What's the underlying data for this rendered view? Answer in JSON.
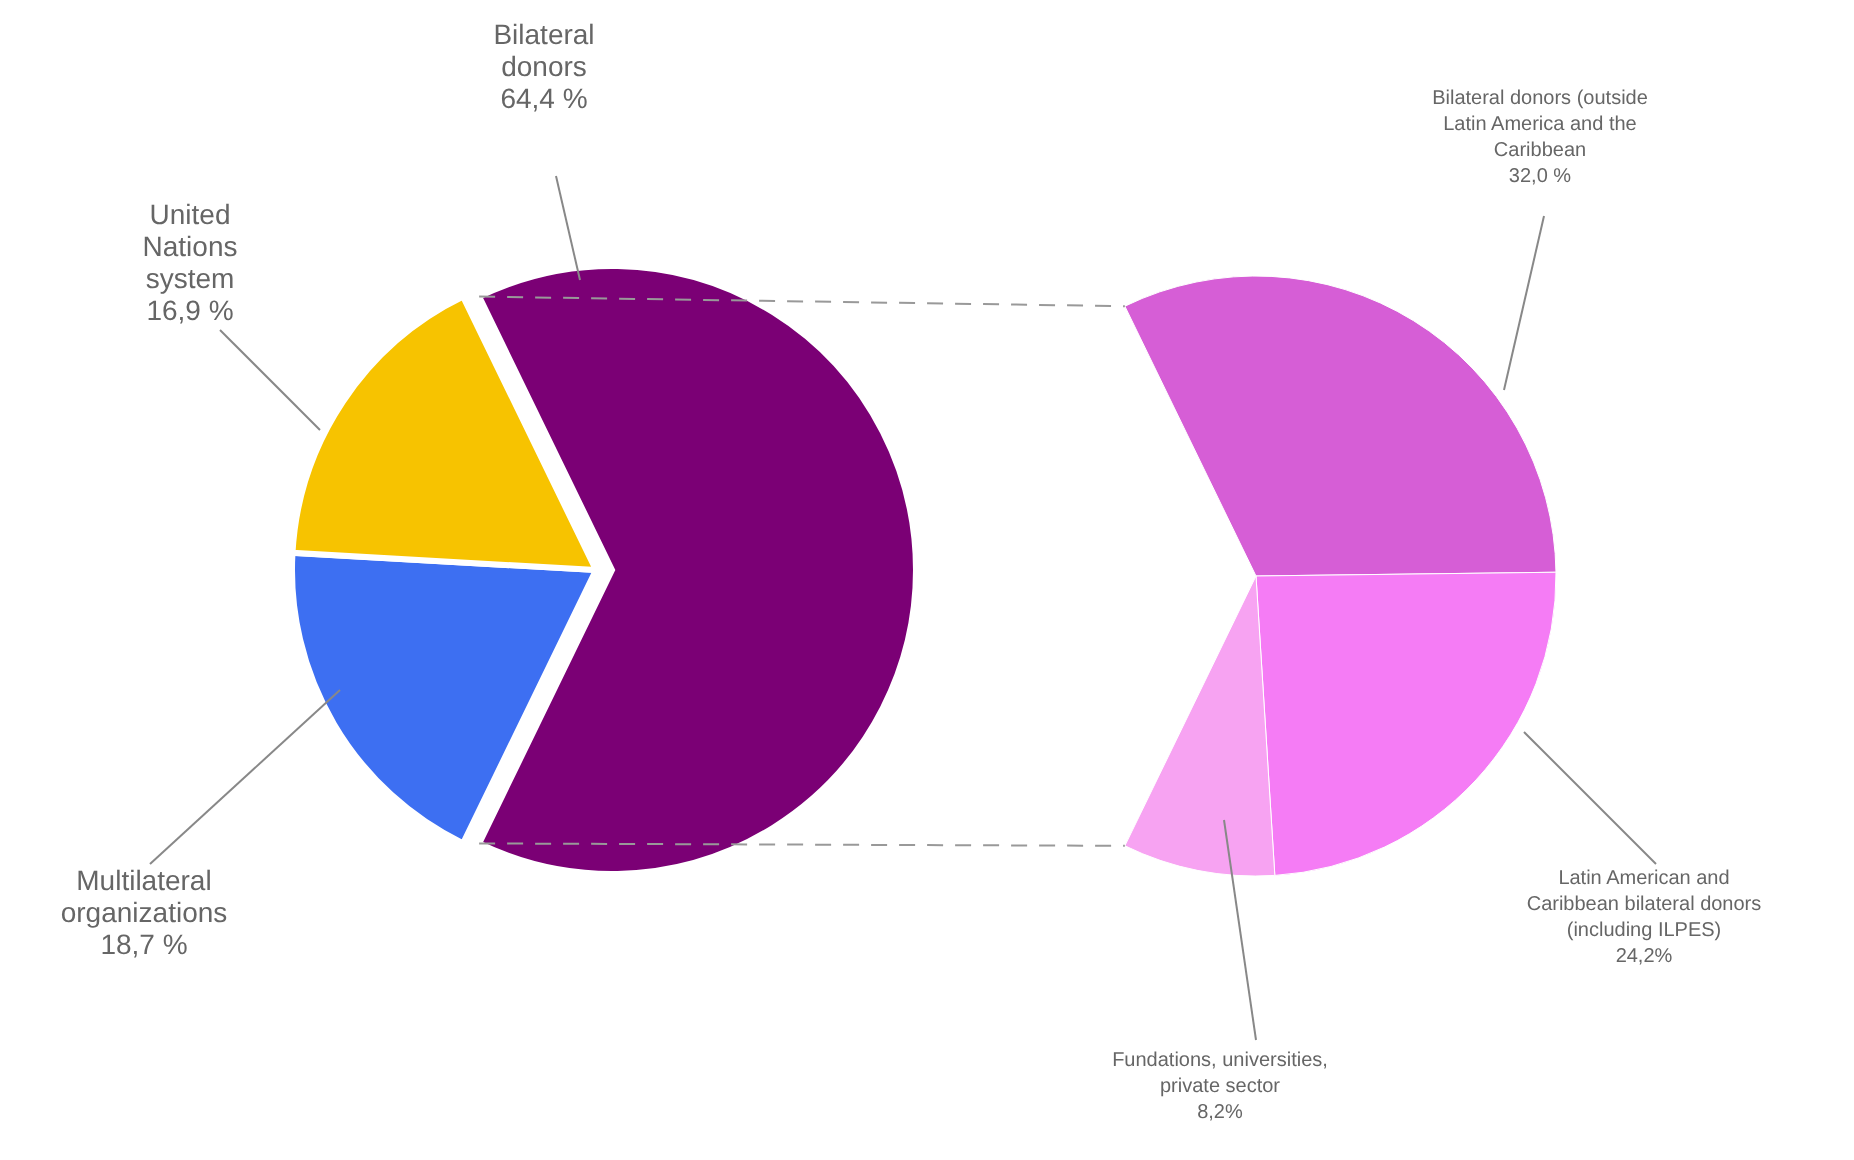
{
  "chart_data": [
    {
      "type": "pie",
      "categories": [
        "Bilateral donors",
        "Multilateral organizations",
        "United Nations system"
      ],
      "values": [
        64.4,
        18.7,
        16.9
      ],
      "colors": [
        "#7b0075",
        "#3d6ff2",
        "#f7c300"
      ],
      "value_labels": [
        "64,4 %",
        "18,7 %",
        "16,9 %"
      ]
    },
    {
      "type": "pie",
      "categories": [
        "Bilateral donors (outside Latin America and the Caribbean",
        "Latin American and Caribbean bilateral donors (including ILPES)",
        "Fundations, universities, private sector"
      ],
      "values": [
        32.0,
        24.2,
        8.2
      ],
      "colors": [
        "#d65ed6",
        "#f57cf5",
        "#f7a3f2"
      ],
      "value_labels": [
        "32,0 %",
        "24,2%",
        "8,2%"
      ]
    }
  ]
}
